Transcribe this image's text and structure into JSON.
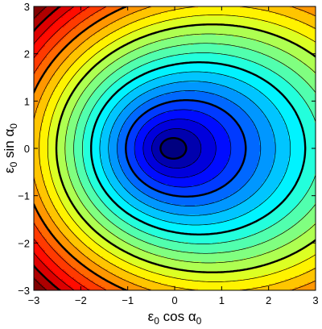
{
  "chart_data": {
    "type": "contour",
    "title": "",
    "colormap": "jet",
    "xlabel": {
      "base": "ε",
      "sub": "0",
      "mid": " cos α",
      "sub2": "0"
    },
    "ylabel": {
      "base": "ε",
      "sub": "0",
      "mid": " sin α",
      "sub2": "0"
    },
    "xlim": [
      -3,
      3
    ],
    "ylim": [
      -3,
      3
    ],
    "x_ticks": [
      -3,
      -2,
      -1,
      0,
      1,
      2,
      3
    ],
    "y_ticks": [
      -3,
      -2,
      -1,
      0,
      1,
      2,
      3
    ],
    "x_tick_labels": [
      "−3",
      "−2",
      "−1",
      "0",
      "1",
      "2",
      "3"
    ],
    "y_tick_labels": [
      "−3",
      "−2",
      "−1",
      "0",
      "1",
      "2",
      "3"
    ],
    "minimum": {
      "x": -0.1,
      "y": 0
    },
    "filled": true,
    "thin_contour_count": 22,
    "bold_contour_every": 4,
    "grid": false,
    "legend": "none"
  }
}
